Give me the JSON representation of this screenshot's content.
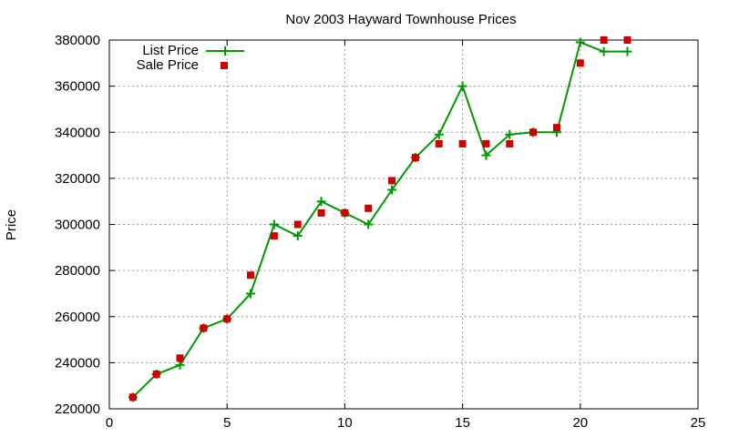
{
  "chart_data": {
    "type": "line",
    "title": "Nov 2003 Hayward Townhouse Prices",
    "xlabel": "",
    "ylabel": "Price",
    "xlim": [
      0,
      25
    ],
    "ylim": [
      220000,
      380000
    ],
    "xticks": [
      0,
      5,
      10,
      15,
      20,
      25
    ],
    "yticks": [
      220000,
      240000,
      260000,
      280000,
      300000,
      320000,
      340000,
      360000,
      380000
    ],
    "grid": true,
    "legend": "top-left",
    "series": [
      {
        "name": "List Price",
        "style": "line-with-plus-markers",
        "color": "#009900",
        "x": [
          1,
          2,
          3,
          4,
          5,
          6,
          7,
          8,
          9,
          10,
          11,
          12,
          13,
          14,
          15,
          16,
          17,
          18,
          19,
          20,
          21,
          22
        ],
        "y": [
          225000,
          235000,
          239000,
          255000,
          259000,
          270000,
          300000,
          295000,
          310000,
          305000,
          300000,
          315000,
          329000,
          339000,
          360000,
          330000,
          339000,
          340000,
          340000,
          379000,
          375000,
          375000
        ]
      },
      {
        "name": "Sale Price",
        "style": "square-points",
        "color": "#cc0000",
        "x": [
          1,
          2,
          3,
          4,
          5,
          6,
          7,
          8,
          9,
          10,
          11,
          12,
          13,
          14,
          15,
          16,
          17,
          18,
          19,
          20,
          21,
          22
        ],
        "y": [
          225000,
          235000,
          242000,
          255000,
          259000,
          278000,
          295000,
          300000,
          305000,
          305000,
          307000,
          319000,
          329000,
          335000,
          335000,
          335000,
          335000,
          340000,
          342000,
          370000,
          380000,
          380000
        ]
      }
    ]
  }
}
